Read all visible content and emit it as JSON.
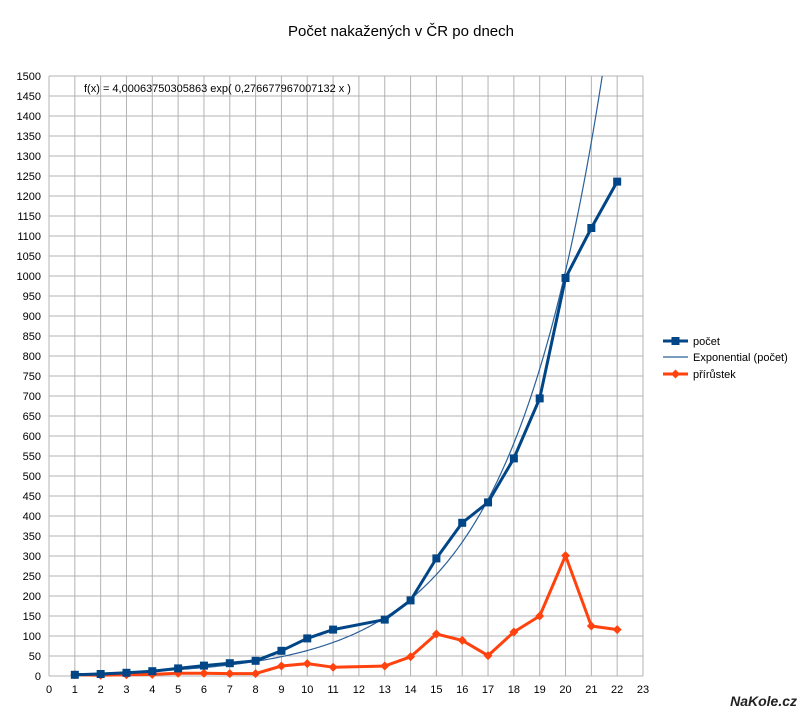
{
  "chart_data": {
    "type": "line",
    "title": "Počet nakažených v ČR po dnech",
    "xlabel": "",
    "ylabel": "",
    "xlim": [
      0,
      23
    ],
    "ylim": [
      0,
      1500
    ],
    "x_ticks": [
      0,
      1,
      2,
      3,
      4,
      5,
      6,
      7,
      8,
      9,
      10,
      11,
      12,
      13,
      14,
      15,
      16,
      17,
      18,
      19,
      20,
      21,
      22,
      23
    ],
    "y_ticks": [
      0,
      50,
      100,
      150,
      200,
      250,
      300,
      350,
      400,
      450,
      500,
      550,
      600,
      650,
      700,
      750,
      800,
      850,
      900,
      950,
      1000,
      1050,
      1100,
      1150,
      1200,
      1250,
      1300,
      1350,
      1400,
      1450,
      1500
    ],
    "grid": true,
    "legend_position": "right",
    "annotation": "f(x) = 4,00063750305863 exp( 0,276677967007132 x )",
    "series": [
      {
        "name": "počet",
        "color": "#004586",
        "marker": "square",
        "x": [
          1,
          2,
          3,
          4,
          5,
          6,
          7,
          8,
          9,
          10,
          11,
          12,
          13,
          14,
          15,
          16,
          17,
          18,
          19,
          20,
          21,
          22
        ],
        "values": [
          3,
          5,
          8,
          12,
          19,
          26,
          32,
          38,
          63,
          94,
          116,
          null,
          141,
          189,
          294,
          383,
          434,
          544,
          694,
          995,
          1120,
          1236
        ]
      },
      {
        "name": "Exponential (počet)",
        "color": "#2a6099",
        "type": "trendline",
        "a": 4.00063750305863,
        "b": 0.276677967007132
      },
      {
        "name": "přírůstek",
        "color": "#ff420e",
        "marker": "diamond",
        "x": [
          1,
          2,
          3,
          4,
          5,
          6,
          7,
          8,
          9,
          10,
          11,
          12,
          13,
          14,
          15,
          16,
          17,
          18,
          19,
          20,
          21,
          22
        ],
        "values": [
          3,
          2,
          3,
          4,
          7,
          7,
          6,
          6,
          25,
          31,
          22,
          null,
          25,
          48,
          105,
          89,
          51,
          110,
          150,
          301,
          125,
          116
        ]
      }
    ],
    "watermark": "NaKole.cz"
  }
}
